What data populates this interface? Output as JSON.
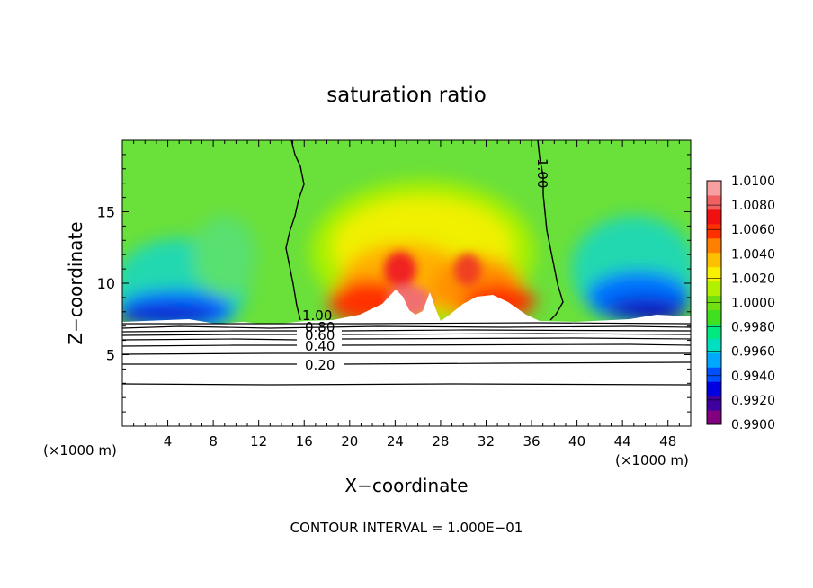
{
  "chart_data": {
    "type": "heatmap",
    "title": "saturation ratio",
    "xlabel": "X−coordinate",
    "ylabel": "Z−coordinate",
    "x_unit_left": "(×1000 m)",
    "x_unit_right": "(×1000 m)",
    "xlim": [
      0,
      50
    ],
    "ylim": [
      0,
      20
    ],
    "x_ticks": [
      4,
      8,
      12,
      16,
      20,
      24,
      28,
      32,
      36,
      40,
      44,
      48
    ],
    "y_ticks": [
      5,
      10,
      15
    ],
    "colorbar": {
      "min": 0.99,
      "max": 1.01,
      "labels": [
        "1.0100",
        "1.0080",
        "1.0060",
        "1.0040",
        "1.0020",
        "1.0000",
        "0.9980",
        "0.9960",
        "0.9940",
        "0.9920",
        "0.9900"
      ],
      "colors": [
        "#800080",
        "#4000a0",
        "#0000e0",
        "#0050ff",
        "#00a8ff",
        "#00e0c0",
        "#00e880",
        "#40e020",
        "#70e010",
        "#b0f000",
        "#f8f000",
        "#ffc000",
        "#ff8000",
        "#ff3000",
        "#f01010",
        "#f06060",
        "#f8a0a0"
      ]
    },
    "contour_labels": [
      "1.00",
      "1.00",
      "0.80",
      "0.60",
      "0.40",
      "0.20"
    ],
    "contour_levels": [
      1.0,
      0.8,
      0.6,
      0.4,
      0.2
    ],
    "contour_interval_text": "CONTOUR INTERVAL = 1.000E−01",
    "grid": false
  }
}
